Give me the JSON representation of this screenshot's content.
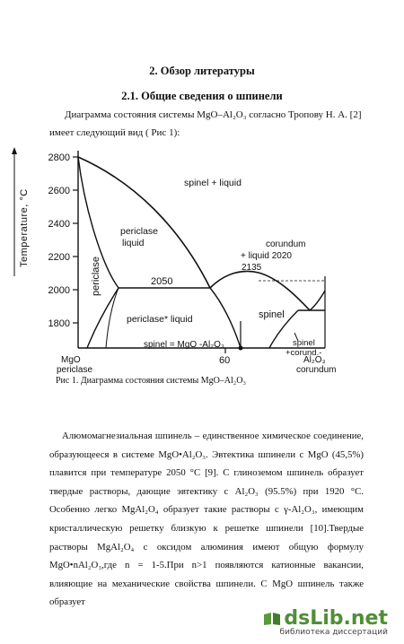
{
  "section_title": "2. Обзор литературы",
  "subsection_title": "2.1. Общие сведения о шпинели",
  "intro_line1": "Диаграмма состояния системы MgO–Al₂O₃ согласно Тропову Н. А. [2]",
  "intro_line2": "имеет следующий вид ( Рис 1):",
  "figure": {
    "y_axis_label": "Temperature, °C",
    "y_ticks": [
      "2800",
      "2600",
      "2400",
      "2200",
      "2000",
      "1800"
    ],
    "x_tick_60": "60",
    "x_left_label_1": "MgO",
    "x_left_label_2": "periclase",
    "x_right_label_1": "Al₂O₃",
    "x_right_label_2": "corundum",
    "region_spinel_liquid": "spinel + liquid",
    "region_periclase_liquid_1": "periclase",
    "region_periclase_liquid_2": "liquid",
    "region_periclase": "periclase",
    "label_2050": "2050",
    "label_2135": "2135",
    "region_corundum_liquid_1": "corundum",
    "region_corundum_liquid_2": "+ liquid 2020",
    "region_periclase_liquid_low": "periclase* liquid",
    "region_spinel": "spinel",
    "region_spinel_formula": "spinel = MgO -Al₂O₃",
    "region_spinel_corund_1": "spinel",
    "region_spinel_corund_2": "+corund.-",
    "caption": "Рис 1. Диаграмма состояния системы MgO–Al₂O₃"
  },
  "paragraph": "Алюмомагнезиальная шпинель – единственное химическое соединение, образующееся в системе MgO•Al₂O₃. Эвтектика шпинели с MgO (45,5%) плавится при температуре 2050 °С [9]. С глиноземом шпинель образует твердые растворы, дающие эвтектику с Al₂O₃ (95.5%) при 1920 °С. Особенно легко MgAl₂O₄ образует такие растворы с γ-Al₂O₃, имеющим кристаллическую решетку близкую к решетке шпинели [10].Твердые растворы MgAl₂O₄ с оксидом алюминия имеют общую формулу MgO•nAl₂O₃,где n = 1-5.При n>1 появляются катионные вакансии, влияющие на механические свойства шпинели. С MgO шпинель также образует",
  "watermark": {
    "logo": "dsLib.net",
    "subtitle": "библиотека диссертаций"
  }
}
